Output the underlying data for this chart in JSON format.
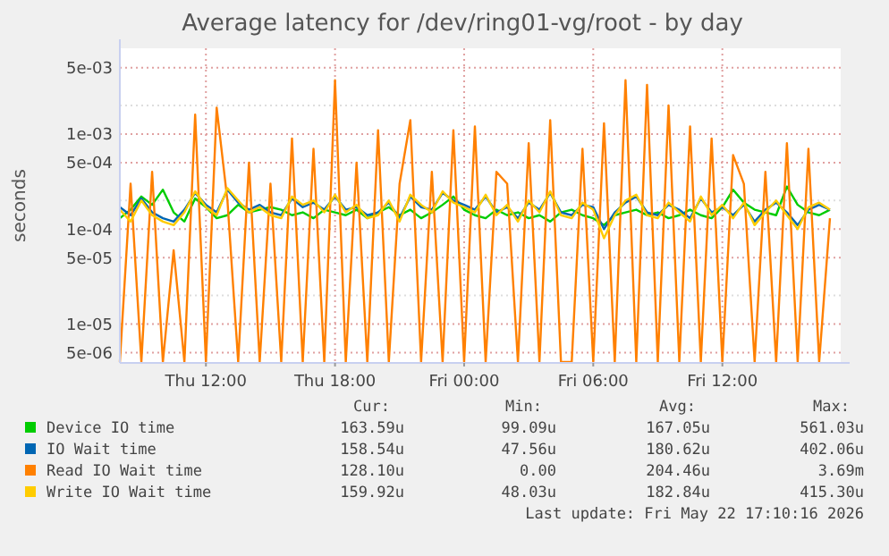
{
  "chart_data": {
    "type": "line",
    "title": "Average latency for /dev/ring01-vg/root - by day",
    "ylabel": "seconds",
    "log": true,
    "grid": true,
    "legend": "bottom",
    "x": [
      "2026-05-21T08:00",
      "2026-05-21T08:30",
      "2026-05-21T09:00",
      "2026-05-21T09:30",
      "2026-05-21T10:00",
      "2026-05-21T10:30",
      "2026-05-21T11:00",
      "2026-05-21T11:30",
      "2026-05-21T12:00",
      "2026-05-21T12:30",
      "2026-05-21T13:00",
      "2026-05-21T13:30",
      "2026-05-21T14:00",
      "2026-05-21T14:30",
      "2026-05-21T15:00",
      "2026-05-21T15:30",
      "2026-05-21T16:00",
      "2026-05-21T16:30",
      "2026-05-21T17:00",
      "2026-05-21T17:30",
      "2026-05-21T18:00",
      "2026-05-21T18:30",
      "2026-05-21T19:00",
      "2026-05-21T19:30",
      "2026-05-21T20:00",
      "2026-05-21T20:30",
      "2026-05-21T21:00",
      "2026-05-21T21:30",
      "2026-05-21T22:00",
      "2026-05-21T22:30",
      "2026-05-21T23:00",
      "2026-05-21T23:30",
      "2026-05-22T00:00",
      "2026-05-22T00:30",
      "2026-05-22T01:00",
      "2026-05-22T01:30",
      "2026-05-22T02:00",
      "2026-05-22T02:30",
      "2026-05-22T03:00",
      "2026-05-22T03:30",
      "2026-05-22T04:00",
      "2026-05-22T04:30",
      "2026-05-22T05:00",
      "2026-05-22T05:30",
      "2026-05-22T06:00",
      "2026-05-22T06:30",
      "2026-05-22T07:00",
      "2026-05-22T07:30",
      "2026-05-22T08:00",
      "2026-05-22T08:30",
      "2026-05-22T09:00",
      "2026-05-22T09:30",
      "2026-05-22T10:00",
      "2026-05-22T10:30",
      "2026-05-22T11:00",
      "2026-05-22T11:30",
      "2026-05-22T12:00",
      "2026-05-22T12:30",
      "2026-05-22T13:00",
      "2026-05-22T13:30",
      "2026-05-22T14:00",
      "2026-05-22T14:30",
      "2026-05-22T15:00",
      "2026-05-22T15:30",
      "2026-05-22T16:00",
      "2026-05-22T16:30",
      "2026-05-22T17:00"
    ],
    "series": [
      {
        "name": "Device IO time",
        "color": "#00cc00",
        "values": [
          0.00013,
          0.00016,
          0.00022,
          0.00018,
          0.00026,
          0.00015,
          0.00012,
          0.00021,
          0.00017,
          0.00013,
          0.00014,
          0.00018,
          0.00015,
          0.00016,
          0.00017,
          0.00016,
          0.00014,
          0.00015,
          0.00013,
          0.00016,
          0.00015,
          0.00014,
          0.00016,
          0.00013,
          0.00015,
          0.00017,
          0.00014,
          0.00016,
          0.00013,
          0.00015,
          0.00018,
          0.00022,
          0.00016,
          0.00014,
          0.00013,
          0.00016,
          0.00014,
          0.00015,
          0.00013,
          0.00014,
          0.00012,
          0.00015,
          0.00016,
          0.00014,
          0.00013,
          0.00011,
          0.00014,
          0.00015,
          0.00016,
          0.00014,
          0.00015,
          0.00013,
          0.00014,
          0.00016,
          0.00014,
          0.00013,
          0.00017,
          0.00026,
          0.00019,
          0.00016,
          0.00015,
          0.00014,
          0.00028,
          0.00018,
          0.00015,
          0.00014,
          0.00016
        ]
      },
      {
        "name": "IO Wait time",
        "color": "#0066b3",
        "values": [
          0.00017,
          0.00014,
          0.00021,
          0.00015,
          0.00013,
          0.00012,
          0.00016,
          0.00024,
          0.00018,
          0.00015,
          0.00026,
          0.00019,
          0.00016,
          0.00018,
          0.00015,
          0.00014,
          0.00021,
          0.00017,
          0.00019,
          0.00016,
          0.00022,
          0.00016,
          0.00017,
          0.00014,
          0.00015,
          0.00019,
          0.00013,
          0.00022,
          0.00017,
          0.00016,
          0.00024,
          0.0002,
          0.00018,
          0.00016,
          0.00022,
          0.00015,
          0.00017,
          0.00013,
          0.00019,
          0.00016,
          0.00024,
          0.00015,
          0.00014,
          0.00018,
          0.00017,
          0.0001,
          0.00015,
          0.00019,
          0.00022,
          0.00015,
          0.00014,
          0.00018,
          0.00016,
          0.00013,
          0.00021,
          0.00015,
          0.00017,
          0.00014,
          0.00018,
          0.00012,
          0.00016,
          0.00019,
          0.00015,
          0.00011,
          0.00016,
          0.00018,
          0.00016
        ]
      },
      {
        "name": "Read IO Wait time",
        "color": "#ff8000",
        "values": [
          4e-06,
          0.0003,
          4e-06,
          0.0004,
          4e-06,
          6e-05,
          4e-06,
          0.0016,
          4e-06,
          0.0019,
          0.0002,
          4e-06,
          0.0005,
          4e-06,
          0.0003,
          4e-06,
          0.0009,
          4e-06,
          0.0007,
          4e-06,
          0.00369,
          4e-06,
          0.0005,
          4e-06,
          0.0011,
          4e-06,
          0.0003,
          0.0014,
          4e-06,
          0.0004,
          4e-06,
          0.0011,
          4e-06,
          0.0012,
          4e-06,
          0.0004,
          0.0003,
          4e-06,
          0.0008,
          4e-06,
          0.0014,
          4e-06,
          4e-06,
          0.0007,
          4e-06,
          0.0013,
          4e-06,
          0.00369,
          4e-06,
          0.0033,
          4e-06,
          0.002,
          4e-06,
          0.0012,
          4e-06,
          0.0009,
          4e-06,
          0.0006,
          0.0003,
          4e-06,
          0.0004,
          4e-06,
          0.0008,
          4e-06,
          0.0007,
          4e-06,
          0.00013
        ]
      },
      {
        "name": "Write IO Wait time",
        "color": "#ffcc00",
        "values": [
          0.00016,
          0.00012,
          0.0002,
          0.00014,
          0.00012,
          0.00011,
          0.00015,
          0.00025,
          0.00017,
          0.00014,
          0.00027,
          0.0002,
          0.00015,
          0.00017,
          0.00014,
          0.00013,
          0.00022,
          0.00018,
          0.0002,
          0.00015,
          0.00023,
          0.00015,
          0.00018,
          0.00013,
          0.00014,
          0.0002,
          0.00012,
          0.00023,
          0.00018,
          0.00015,
          0.00025,
          0.00019,
          0.00017,
          0.00015,
          0.00023,
          0.00014,
          0.00018,
          0.00012,
          0.0002,
          0.00015,
          0.00025,
          0.00014,
          0.00013,
          0.00019,
          0.00016,
          8e-05,
          0.00014,
          0.0002,
          0.00023,
          0.00014,
          0.00013,
          0.00019,
          0.00015,
          0.00012,
          0.00022,
          0.00014,
          0.00018,
          0.00013,
          0.00019,
          0.00011,
          0.00015,
          0.0002,
          0.00014,
          0.0001,
          0.00017,
          0.00019,
          0.00016
        ]
      }
    ],
    "xlim": [
      "2026-05-21T08:00",
      "2026-05-22T17:30"
    ],
    "xticks": [
      {
        "value": "2026-05-21T12:00",
        "label": "Thu 12:00"
      },
      {
        "value": "2026-05-21T18:00",
        "label": "Thu 18:00"
      },
      {
        "value": "2026-05-22T00:00",
        "label": "Fri 00:00"
      },
      {
        "value": "2026-05-22T06:00",
        "label": "Fri 06:00"
      },
      {
        "value": "2026-05-22T12:00",
        "label": "Fri 12:00"
      }
    ],
    "ylim": [
      3.9e-06,
      0.008
    ],
    "yticks": [
      {
        "value": 0.005,
        "label": "5e-03"
      },
      {
        "value": 0.002,
        "label": null
      },
      {
        "value": 0.001,
        "label": "1e-03"
      },
      {
        "value": 0.0005,
        "label": "5e-04"
      },
      {
        "value": 0.0002,
        "label": null
      },
      {
        "value": 0.0001,
        "label": "1e-04"
      },
      {
        "value": 5e-05,
        "label": "5e-05"
      },
      {
        "value": 2e-05,
        "label": null
      },
      {
        "value": 1e-05,
        "label": "1e-05"
      },
      {
        "value": 5e-06,
        "label": "5e-06"
      }
    ],
    "annotations": [
      "Cur:",
      "Min:",
      "Avg:",
      "Max:",
      "163.59u",
      "99.09u",
      "167.05u",
      "561.03u",
      "158.54u",
      "47.56u",
      "180.62u",
      "402.06u",
      "128.10u",
      "0.00",
      "204.46u",
      "3.69m",
      "159.92u",
      "48.03u",
      "182.84u",
      "415.30u",
      "Last update: Fri May 22 17:10:16 2026"
    ]
  }
}
